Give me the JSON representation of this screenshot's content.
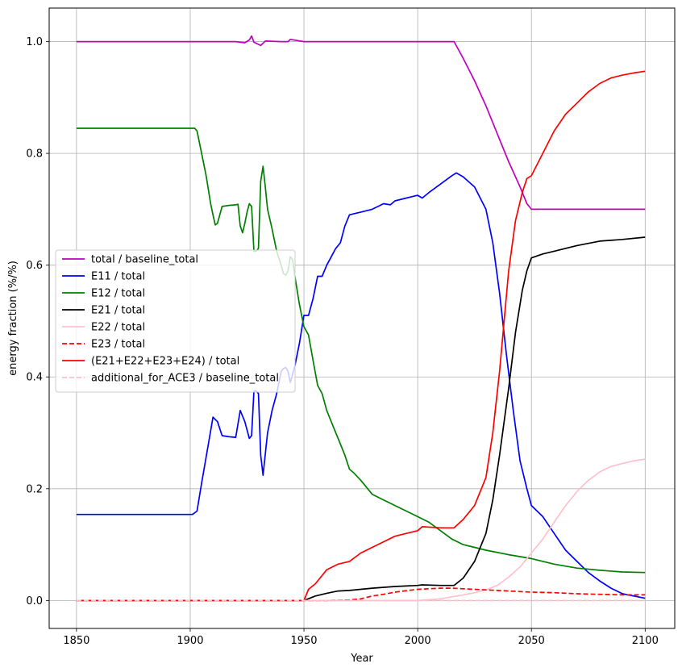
{
  "chart_data": {
    "type": "line",
    "xlabel": "Year",
    "ylabel": "energy fraction (%/%)",
    "xlim": [
      1838,
      2113
    ],
    "ylim": [
      -0.05,
      1.06
    ],
    "xticks": [
      1850,
      1900,
      1950,
      2000,
      2050,
      2100
    ],
    "yticks": [
      0.0,
      0.2,
      0.4,
      0.6,
      0.8,
      1.0
    ],
    "xtick_labels": [
      "1850",
      "1900",
      "1950",
      "2000",
      "2050",
      "2100"
    ],
    "ytick_labels": [
      "0.0",
      "0.2",
      "0.4",
      "0.6",
      "0.8",
      "1.0"
    ],
    "grid": true,
    "legend_position": "center-left",
    "series": [
      {
        "name": "total / baseline_total",
        "color": "#bf00bf",
        "dash": "solid",
        "x": [
          1850,
          1900,
          1905,
          1910,
          1920,
          1924,
          1926,
          1927,
          1928,
          1930,
          1931,
          1933,
          1940,
          1943,
          1944,
          1950,
          1960,
          1970,
          1980,
          1990,
          2000,
          2010,
          2016,
          2020,
          2025,
          2030,
          2035,
          2040,
          2045,
          2048,
          2050,
          2060,
          2070,
          2080,
          2090,
          2100
        ],
        "y": [
          1.0,
          1.0,
          1.0,
          1.0,
          1.0,
          0.998,
          1.003,
          1.01,
          0.999,
          0.995,
          0.993,
          1.001,
          1.0,
          1.0,
          1.004,
          1.0,
          1.0,
          1.0,
          1.0,
          1.0,
          1.0,
          1.0,
          1.0,
          0.97,
          0.93,
          0.885,
          0.835,
          0.785,
          0.74,
          0.71,
          0.7,
          0.7,
          0.7,
          0.7,
          0.7,
          0.7
        ]
      },
      {
        "name": "E11 / total",
        "color": "#0000ff",
        "dash": "solid",
        "x": [
          1850,
          1901,
          1903,
          1905,
          1908,
          1910,
          1912,
          1914,
          1917,
          1920,
          1922,
          1924,
          1926,
          1927,
          1928,
          1929,
          1930,
          1931,
          1932,
          1934,
          1936,
          1938,
          1940,
          1941,
          1942,
          1943,
          1944,
          1946,
          1948,
          1950,
          1952,
          1954,
          1956,
          1958,
          1960,
          1962,
          1964,
          1966,
          1968,
          1970,
          1972,
          1975,
          1980,
          1985,
          1988,
          1990,
          1995,
          2000,
          2002,
          2005,
          2010,
          2015,
          2017,
          2020,
          2025,
          2030,
          2033,
          2036,
          2039,
          2042,
          2045,
          2048,
          2050,
          2055,
          2060,
          2065,
          2070,
          2075,
          2080,
          2085,
          2090,
          2095,
          2100
        ],
        "y": [
          0.154,
          0.154,
          0.16,
          0.21,
          0.28,
          0.328,
          0.32,
          0.295,
          0.293,
          0.292,
          0.34,
          0.32,
          0.29,
          0.295,
          0.375,
          0.375,
          0.37,
          0.26,
          0.224,
          0.3,
          0.34,
          0.37,
          0.41,
          0.415,
          0.417,
          0.41,
          0.39,
          0.42,
          0.46,
          0.51,
          0.51,
          0.54,
          0.58,
          0.58,
          0.6,
          0.615,
          0.63,
          0.64,
          0.67,
          0.69,
          0.692,
          0.695,
          0.7,
          0.71,
          0.708,
          0.715,
          0.72,
          0.725,
          0.72,
          0.73,
          0.745,
          0.76,
          0.765,
          0.758,
          0.74,
          0.7,
          0.64,
          0.55,
          0.44,
          0.34,
          0.25,
          0.2,
          0.17,
          0.15,
          0.12,
          0.09,
          0.07,
          0.05,
          0.035,
          0.022,
          0.012,
          0.008,
          0.004
        ]
      },
      {
        "name": "E12 / total",
        "color": "#008000",
        "dash": "solid",
        "x": [
          1850,
          1901,
          1902,
          1903,
          1905,
          1907,
          1909,
          1910,
          1911,
          1912,
          1914,
          1917,
          1920,
          1921,
          1922,
          1923,
          1924,
          1925,
          1926,
          1927,
          1928,
          1929,
          1930,
          1931,
          1932,
          1933,
          1934,
          1936,
          1938,
          1940,
          1941,
          1942,
          1943,
          1944,
          1945,
          1946,
          1948,
          1950,
          1952,
          1954,
          1956,
          1958,
          1960,
          1962,
          1965,
          1968,
          1970,
          1972,
          1975,
          1978,
          1980,
          1985,
          1990,
          1995,
          2000,
          2005,
          2010,
          2015,
          2020,
          2025,
          2030,
          2040,
          2050,
          2060,
          2070,
          2080,
          2090,
          2100
        ],
        "y": [
          0.845,
          0.845,
          0.845,
          0.84,
          0.8,
          0.76,
          0.71,
          0.69,
          0.672,
          0.675,
          0.705,
          0.707,
          0.708,
          0.709,
          0.67,
          0.658,
          0.675,
          0.695,
          0.71,
          0.705,
          0.625,
          0.625,
          0.63,
          0.75,
          0.777,
          0.74,
          0.7,
          0.665,
          0.625,
          0.6,
          0.585,
          0.582,
          0.59,
          0.615,
          0.61,
          0.58,
          0.53,
          0.49,
          0.475,
          0.43,
          0.385,
          0.37,
          0.34,
          0.32,
          0.29,
          0.26,
          0.235,
          0.228,
          0.215,
          0.2,
          0.19,
          0.18,
          0.17,
          0.16,
          0.15,
          0.14,
          0.125,
          0.11,
          0.1,
          0.095,
          0.09,
          0.082,
          0.075,
          0.065,
          0.058,
          0.054,
          0.051,
          0.05
        ]
      },
      {
        "name": "E21 / total",
        "color": "#000000",
        "dash": "solid",
        "x": [
          1850,
          1950,
          1955,
          1960,
          1965,
          1970,
          1980,
          1990,
          2000,
          2002,
          2010,
          2016,
          2020,
          2025,
          2030,
          2033,
          2036,
          2040,
          2043,
          2046,
          2048,
          2050,
          2055,
          2060,
          2070,
          2080,
          2090,
          2100
        ],
        "y": [
          0.0,
          0.0,
          0.008,
          0.013,
          0.017,
          0.018,
          0.022,
          0.025,
          0.027,
          0.028,
          0.027,
          0.027,
          0.04,
          0.07,
          0.12,
          0.18,
          0.26,
          0.38,
          0.48,
          0.555,
          0.59,
          0.613,
          0.62,
          0.625,
          0.635,
          0.643,
          0.646,
          0.65
        ]
      },
      {
        "name": "E22 / total",
        "color": "#ffc0cb",
        "dash": "solid",
        "x": [
          1850,
          1990,
          2000,
          2010,
          2020,
          2025,
          2030,
          2035,
          2040,
          2045,
          2050,
          2055,
          2060,
          2065,
          2070,
          2075,
          2080,
          2085,
          2090,
          2095,
          2100
        ],
        "y": [
          0.0,
          0.0,
          0.0,
          0.003,
          0.01,
          0.014,
          0.019,
          0.027,
          0.042,
          0.06,
          0.085,
          0.11,
          0.14,
          0.17,
          0.195,
          0.215,
          0.23,
          0.24,
          0.245,
          0.25,
          0.253
        ]
      },
      {
        "name": "E23 / total",
        "color": "#ff0000",
        "dash": "dashed",
        "x": [
          1850,
          1960,
          1970,
          1975,
          1980,
          1985,
          1990,
          2000,
          2010,
          2015,
          2020,
          2030,
          2040,
          2050,
          2060,
          2070,
          2080,
          2090,
          2100
        ],
        "y": [
          0.0,
          0.0,
          0.001,
          0.003,
          0.008,
          0.011,
          0.015,
          0.02,
          0.022,
          0.022,
          0.021,
          0.019,
          0.017,
          0.015,
          0.014,
          0.012,
          0.011,
          0.01,
          0.01
        ]
      },
      {
        "name": "(E21+E22+E23+E24) / total",
        "color": "#ff0000",
        "dash": "solid",
        "x": [
          1850,
          1950,
          1952,
          1955,
          1960,
          1965,
          1970,
          1975,
          1980,
          1985,
          1990,
          1995,
          2000,
          2002,
          2010,
          2016,
          2020,
          2025,
          2030,
          2033,
          2036,
          2040,
          2043,
          2046,
          2048,
          2050,
          2055,
          2060,
          2065,
          2070,
          2075,
          2080,
          2085,
          2090,
          2095,
          2100
        ],
        "y": [
          0.0,
          0.0,
          0.02,
          0.03,
          0.055,
          0.065,
          0.07,
          0.085,
          0.095,
          0.105,
          0.115,
          0.12,
          0.125,
          0.132,
          0.13,
          0.13,
          0.145,
          0.17,
          0.22,
          0.3,
          0.41,
          0.59,
          0.68,
          0.73,
          0.755,
          0.76,
          0.8,
          0.84,
          0.87,
          0.89,
          0.91,
          0.925,
          0.935,
          0.94,
          0.944,
          0.947
        ]
      },
      {
        "name": "additional_for_ACE3 / baseline_total",
        "color": "#ffc0cb",
        "dash": "dashed",
        "x": [
          1850,
          2100
        ],
        "y": [
          0.0,
          0.0
        ]
      }
    ]
  }
}
